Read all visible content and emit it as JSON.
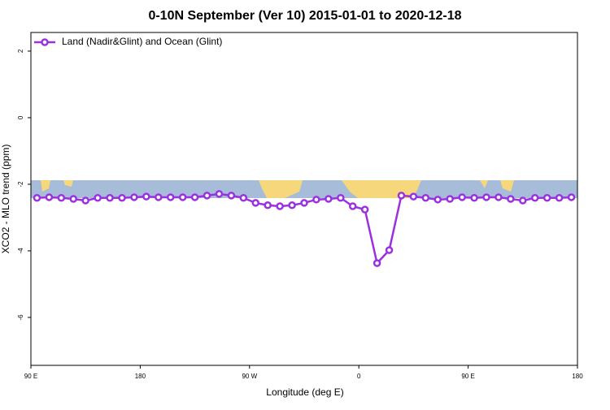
{
  "chart_data": {
    "type": "line",
    "title": "0-10N September (Ver 10)   2015-01-01 to 2020-12-18",
    "x_label": "Longitude (deg E)",
    "y_label": "XCO2 - MLO trend (ppm)",
    "x": [
      95,
      105,
      115,
      125,
      135,
      145,
      155,
      165,
      175,
      185,
      195,
      205,
      215,
      225,
      235,
      245,
      255,
      265,
      275,
      285,
      295,
      305,
      315,
      325,
      335,
      345,
      355,
      365,
      375,
      385,
      395,
      405,
      415,
      425,
      435,
      445,
      455,
      465,
      475,
      485,
      495,
      505,
      515,
      525,
      535
    ],
    "series": [
      {
        "name": "Land (Nadir&Glint) and Ocean (Glint)",
        "color": "#9b30e0",
        "values": [
          -2.41,
          -2.39,
          -2.41,
          -2.44,
          -2.49,
          -2.41,
          -2.41,
          -2.41,
          -2.39,
          -2.37,
          -2.39,
          -2.39,
          -2.39,
          -2.39,
          -2.34,
          -2.29,
          -2.34,
          -2.41,
          -2.56,
          -2.63,
          -2.66,
          -2.63,
          -2.56,
          -2.46,
          -2.44,
          -2.41,
          -2.66,
          -2.76,
          -4.37,
          -3.98,
          -2.34,
          -2.37,
          -2.41,
          -2.46,
          -2.44,
          -2.39,
          -2.41,
          -2.39,
          -2.39,
          -2.44,
          -2.49,
          -2.41,
          -2.41,
          -2.41,
          -2.39
        ]
      }
    ],
    "xlim": [
      90,
      540
    ],
    "xticks": [
      {
        "value": 90,
        "label": "90 E"
      },
      180,
      {
        "value": 270,
        "label": "90 W"
      },
      {
        "value": 360,
        "label": "0"
      },
      {
        "value": 450,
        "label": "90 E"
      },
      {
        "value": 540,
        "label": "180"
      }
    ],
    "ylim": [
      -7.44,
      2.56
    ],
    "yticks": [
      -6,
      -4,
      -2,
      0,
      2
    ],
    "legend": "top-left"
  }
}
